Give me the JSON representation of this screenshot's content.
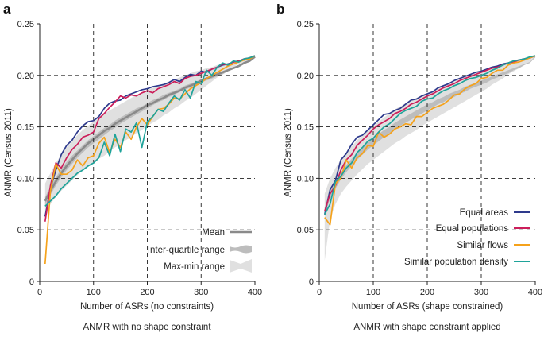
{
  "colors": {
    "equal_areas": "#2e3a8c",
    "equal_populations": "#cc1e5a",
    "similar_flows": "#f5a21b",
    "similar_density": "#1fa39a",
    "mean": "#8a8a8a",
    "iqr": "#bdbdbd",
    "maxmin": "#e0e0e0",
    "grid": "#222222"
  },
  "chart_data": [
    {
      "panel_label": "a",
      "type": "line",
      "title": "ANMR with no shape constraint",
      "xlabel": "Number of ASRs (no constraints)",
      "ylabel": "ANMR (Census 2011)",
      "xlim": [
        0,
        400
      ],
      "ylim": [
        0,
        0.25
      ],
      "xticks": [
        "0",
        "100",
        "200",
        "300",
        "400"
      ],
      "yticks": [
        "0",
        "0.05",
        "0.10",
        "0.15",
        "0.20",
        "0.25"
      ],
      "legend": [
        {
          "label": "Mean",
          "kind": "mean"
        },
        {
          "label": "Inter-quartile range",
          "kind": "iqr"
        },
        {
          "label": "Max-min range",
          "kind": "maxmin"
        }
      ],
      "x": [
        10,
        20,
        30,
        40,
        50,
        60,
        70,
        80,
        90,
        100,
        110,
        120,
        130,
        140,
        150,
        160,
        170,
        180,
        190,
        200,
        210,
        220,
        230,
        240,
        250,
        260,
        270,
        280,
        290,
        300,
        310,
        320,
        330,
        340,
        350,
        360,
        370,
        380,
        390,
        400
      ],
      "band_maxmin": {
        "upper": [
          0.095,
          0.105,
          0.115,
          0.123,
          0.13,
          0.136,
          0.142,
          0.147,
          0.151,
          0.155,
          0.159,
          0.163,
          0.166,
          0.169,
          0.172,
          0.175,
          0.178,
          0.181,
          0.183,
          0.186,
          0.188,
          0.19,
          0.192,
          0.194,
          0.196,
          0.198,
          0.2,
          0.202,
          0.204,
          0.205,
          0.207,
          0.208,
          0.21,
          0.211,
          0.212,
          0.213,
          0.215,
          0.216,
          0.217,
          0.219
        ],
        "lower": [
          0.06,
          0.075,
          0.082,
          0.088,
          0.093,
          0.098,
          0.103,
          0.108,
          0.112,
          0.115,
          0.119,
          0.122,
          0.126,
          0.13,
          0.133,
          0.137,
          0.14,
          0.144,
          0.147,
          0.151,
          0.154,
          0.157,
          0.161,
          0.164,
          0.168,
          0.171,
          0.175,
          0.178,
          0.182,
          0.186,
          0.19,
          0.194,
          0.198,
          0.202,
          0.205,
          0.208,
          0.211,
          0.213,
          0.215,
          0.218
        ]
      },
      "band_iqr": {
        "upper": [
          0.082,
          0.092,
          0.101,
          0.109,
          0.116,
          0.122,
          0.127,
          0.132,
          0.137,
          0.141,
          0.145,
          0.149,
          0.152,
          0.156,
          0.159,
          0.162,
          0.165,
          0.168,
          0.17,
          0.173,
          0.176,
          0.178,
          0.181,
          0.183,
          0.185,
          0.187,
          0.19,
          0.192,
          0.194,
          0.196,
          0.198,
          0.2,
          0.202,
          0.204,
          0.206,
          0.208,
          0.21,
          0.212,
          0.214,
          0.2185
        ],
        "lower": [
          0.074,
          0.084,
          0.093,
          0.101,
          0.108,
          0.114,
          0.12,
          0.125,
          0.13,
          0.134,
          0.138,
          0.142,
          0.146,
          0.149,
          0.153,
          0.156,
          0.159,
          0.162,
          0.165,
          0.168,
          0.171,
          0.174,
          0.176,
          0.179,
          0.181,
          0.184,
          0.186,
          0.188,
          0.191,
          0.193,
          0.195,
          0.197,
          0.199,
          0.201,
          0.204,
          0.206,
          0.208,
          0.211,
          0.213,
          0.2175
        ]
      },
      "mean": [
        0.078,
        0.088,
        0.097,
        0.105,
        0.112,
        0.118,
        0.124,
        0.129,
        0.134,
        0.138,
        0.142,
        0.146,
        0.149,
        0.153,
        0.156,
        0.159,
        0.162,
        0.165,
        0.168,
        0.171,
        0.173,
        0.176,
        0.178,
        0.181,
        0.183,
        0.185,
        0.188,
        0.19,
        0.192,
        0.195,
        0.197,
        0.199,
        0.201,
        0.203,
        0.205,
        0.207,
        0.209,
        0.212,
        0.214,
        0.218
      ],
      "series": [
        {
          "name": "Equal areas",
          "color_key": "equal_areas",
          "values": [
            0.063,
            0.09,
            0.108,
            0.123,
            0.132,
            0.137,
            0.145,
            0.151,
            0.155,
            0.156,
            0.16,
            0.168,
            0.173,
            0.175,
            0.176,
            0.18,
            0.182,
            0.184,
            0.186,
            0.187,
            0.189,
            0.19,
            0.191,
            0.193,
            0.196,
            0.194,
            0.198,
            0.201,
            0.2,
            0.204,
            0.203,
            0.206,
            0.208,
            0.21,
            0.211,
            0.213,
            0.214,
            0.215,
            0.217,
            0.219
          ]
        },
        {
          "name": "Equal populations",
          "color_key": "equal_populations",
          "values": [
            0.058,
            0.093,
            0.115,
            0.11,
            0.12,
            0.128,
            0.133,
            0.14,
            0.142,
            0.145,
            0.158,
            0.163,
            0.169,
            0.174,
            0.18,
            0.178,
            0.181,
            0.18,
            0.183,
            0.185,
            0.183,
            0.187,
            0.189,
            0.191,
            0.194,
            0.192,
            0.197,
            0.199,
            0.2,
            0.202,
            0.204,
            0.206,
            0.208,
            0.211,
            0.21,
            0.213,
            0.214,
            0.216,
            0.217,
            0.219
          ]
        },
        {
          "name": "Similar flows",
          "color_key": "similar_flows",
          "values": [
            0.017,
            0.088,
            0.114,
            0.104,
            0.104,
            0.108,
            0.118,
            0.112,
            0.12,
            0.122,
            0.134,
            0.14,
            0.125,
            0.138,
            0.13,
            0.145,
            0.138,
            0.15,
            0.158,
            0.152,
            0.16,
            0.167,
            0.168,
            0.172,
            0.178,
            0.177,
            0.182,
            0.187,
            0.19,
            0.193,
            0.197,
            0.2,
            0.203,
            0.206,
            0.209,
            0.211,
            0.213,
            0.215,
            0.216,
            0.219
          ]
        },
        {
          "name": "Similar population density",
          "color_key": "similar_density",
          "values": [
            0.073,
            0.078,
            0.083,
            0.09,
            0.095,
            0.1,
            0.105,
            0.108,
            0.112,
            0.115,
            0.12,
            0.135,
            0.122,
            0.143,
            0.126,
            0.148,
            0.145,
            0.154,
            0.13,
            0.155,
            0.16,
            0.167,
            0.165,
            0.173,
            0.18,
            0.176,
            0.186,
            0.178,
            0.194,
            0.192,
            0.205,
            0.2,
            0.208,
            0.212,
            0.21,
            0.214,
            0.213,
            0.216,
            0.217,
            0.219
          ]
        }
      ]
    },
    {
      "panel_label": "b",
      "type": "line",
      "title": "ANMR with shape constraint applied",
      "xlabel": "Number of ASRs (shape constrained)",
      "ylabel": "ANMR (Census 2011)",
      "xlim": [
        0,
        400
      ],
      "ylim": [
        0,
        0.25
      ],
      "xticks": [
        "0",
        "100",
        "200",
        "300",
        "400"
      ],
      "yticks": [
        "0",
        "0.05",
        "0.10",
        "0.15",
        "0.20",
        "0.25"
      ],
      "legend": [
        {
          "label": "Equal areas",
          "kind": "line",
          "color_key": "equal_areas"
        },
        {
          "label": "Equal populations",
          "kind": "line",
          "color_key": "equal_populations"
        },
        {
          "label": "Similar flows",
          "kind": "line",
          "color_key": "similar_flows"
        },
        {
          "label": "Similar population density",
          "kind": "line",
          "color_key": "similar_density"
        }
      ],
      "x": [
        10,
        20,
        30,
        40,
        50,
        60,
        70,
        80,
        90,
        100,
        110,
        120,
        130,
        140,
        150,
        160,
        170,
        180,
        190,
        200,
        210,
        220,
        230,
        240,
        250,
        260,
        270,
        280,
        290,
        300,
        310,
        320,
        330,
        340,
        350,
        360,
        370,
        380,
        390,
        400
      ],
      "band_maxmin": {
        "upper": [
          0.085,
          0.1,
          0.11,
          0.118,
          0.125,
          0.131,
          0.137,
          0.142,
          0.147,
          0.151,
          0.155,
          0.159,
          0.163,
          0.167,
          0.17,
          0.173,
          0.176,
          0.178,
          0.181,
          0.183,
          0.185,
          0.188,
          0.19,
          0.192,
          0.194,
          0.196,
          0.198,
          0.2,
          0.202,
          0.204,
          0.206,
          0.208,
          0.209,
          0.211,
          0.212,
          0.214,
          0.215,
          0.216,
          0.217,
          0.219
        ],
        "lower": [
          0.02,
          0.06,
          0.075,
          0.085,
          0.092,
          0.098,
          0.104,
          0.109,
          0.114,
          0.118,
          0.122,
          0.126,
          0.13,
          0.134,
          0.137,
          0.141,
          0.144,
          0.147,
          0.151,
          0.154,
          0.157,
          0.16,
          0.163,
          0.166,
          0.169,
          0.172,
          0.175,
          0.178,
          0.181,
          0.184,
          0.187,
          0.191,
          0.194,
          0.197,
          0.201,
          0.204,
          0.207,
          0.21,
          0.213,
          0.217
        ]
      },
      "band_iqr": {
        "upper": [
          0.072,
          0.087,
          0.097,
          0.106,
          0.113,
          0.119,
          0.125,
          0.13,
          0.135,
          0.139,
          0.143,
          0.147,
          0.15,
          0.154,
          0.157,
          0.16,
          0.163,
          0.166,
          0.169,
          0.172,
          0.174,
          0.177,
          0.179,
          0.182,
          0.184,
          0.186,
          0.189,
          0.191,
          0.193,
          0.195,
          0.197,
          0.199,
          0.201,
          0.203,
          0.205,
          0.207,
          0.209,
          0.211,
          0.213,
          0.2185
        ],
        "lower": [
          0.064,
          0.08,
          0.09,
          0.099,
          0.106,
          0.112,
          0.118,
          0.123,
          0.128,
          0.132,
          0.136,
          0.14,
          0.144,
          0.147,
          0.151,
          0.154,
          0.157,
          0.16,
          0.163,
          0.166,
          0.169,
          0.172,
          0.174,
          0.177,
          0.179,
          0.182,
          0.184,
          0.187,
          0.189,
          0.191,
          0.193,
          0.196,
          0.198,
          0.2,
          0.202,
          0.205,
          0.207,
          0.21,
          0.212,
          0.2175
        ]
      },
      "series": [
        {
          "name": "Equal areas",
          "color_key": "equal_areas",
          "values": [
            0.065,
            0.089,
            0.098,
            0.118,
            0.124,
            0.133,
            0.14,
            0.142,
            0.147,
            0.152,
            0.157,
            0.162,
            0.163,
            0.166,
            0.168,
            0.172,
            0.176,
            0.177,
            0.18,
            0.182,
            0.184,
            0.188,
            0.19,
            0.192,
            0.195,
            0.197,
            0.199,
            0.201,
            0.203,
            0.204,
            0.206,
            0.208,
            0.209,
            0.211,
            0.212,
            0.214,
            0.215,
            0.216,
            0.217,
            0.219
          ]
        },
        {
          "name": "Equal populations",
          "color_key": "equal_populations",
          "values": [
            0.068,
            0.085,
            0.093,
            0.108,
            0.118,
            0.123,
            0.132,
            0.137,
            0.142,
            0.148,
            0.152,
            0.155,
            0.158,
            0.163,
            0.165,
            0.168,
            0.172,
            0.174,
            0.177,
            0.18,
            0.182,
            0.185,
            0.188,
            0.19,
            0.192,
            0.195,
            0.197,
            0.199,
            0.201,
            0.203,
            0.205,
            0.207,
            0.208,
            0.21,
            0.212,
            0.213,
            0.215,
            0.216,
            0.217,
            0.219
          ]
        },
        {
          "name": "Similar flows",
          "color_key": "similar_flows",
          "values": [
            0.062,
            0.055,
            0.095,
            0.1,
            0.118,
            0.11,
            0.12,
            0.124,
            0.132,
            0.131,
            0.145,
            0.14,
            0.143,
            0.148,
            0.15,
            0.153,
            0.152,
            0.16,
            0.16,
            0.164,
            0.168,
            0.17,
            0.172,
            0.176,
            0.181,
            0.182,
            0.187,
            0.19,
            0.192,
            0.197,
            0.198,
            0.202,
            0.205,
            0.205,
            0.21,
            0.212,
            0.213,
            0.215,
            0.217,
            0.219
          ]
        },
        {
          "name": "Similar population density",
          "color_key": "similar_density",
          "values": [
            0.065,
            0.075,
            0.097,
            0.102,
            0.11,
            0.115,
            0.125,
            0.13,
            0.136,
            0.139,
            0.145,
            0.15,
            0.153,
            0.158,
            0.163,
            0.166,
            0.168,
            0.17,
            0.175,
            0.177,
            0.178,
            0.182,
            0.185,
            0.187,
            0.19,
            0.192,
            0.195,
            0.197,
            0.198,
            0.2,
            0.202,
            0.205,
            0.207,
            0.21,
            0.212,
            0.214,
            0.215,
            0.216,
            0.218,
            0.219
          ]
        }
      ]
    }
  ]
}
